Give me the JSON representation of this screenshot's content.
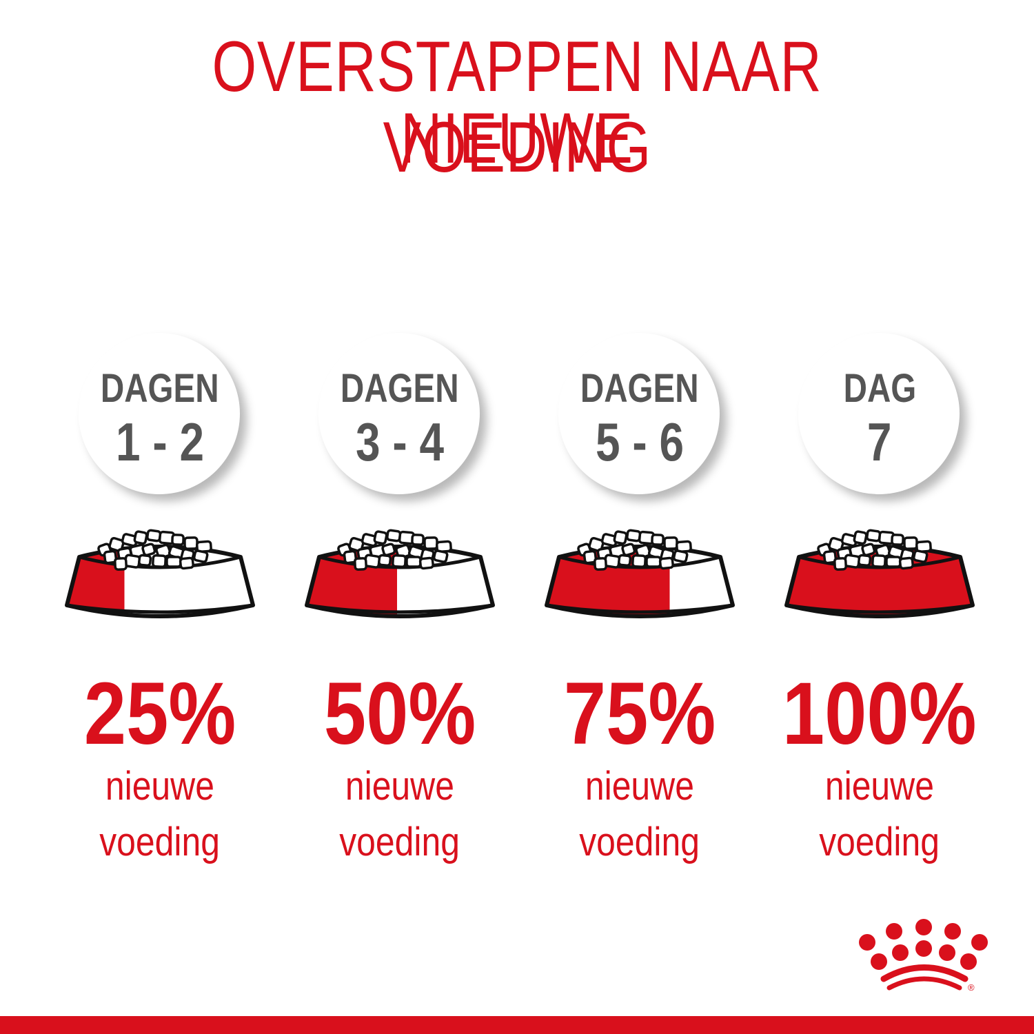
{
  "title": {
    "line1": "OVERSTAPPEN NAAR NIEUWE",
    "line2": "VOEDING"
  },
  "colors": {
    "brand_red": "#d9101c",
    "day_gray": "#555555"
  },
  "steps": [
    {
      "day_label": "DAGEN",
      "day_range": "1 - 2",
      "percent": "25%",
      "new_food_fraction": 0.25,
      "caption_line1": "nieuwe",
      "caption_line2": "voeding"
    },
    {
      "day_label": "DAGEN",
      "day_range": "3 - 4",
      "percent": "50%",
      "new_food_fraction": 0.5,
      "caption_line1": "nieuwe",
      "caption_line2": "voeding"
    },
    {
      "day_label": "DAGEN",
      "day_range": "5 - 6",
      "percent": "75%",
      "new_food_fraction": 0.75,
      "caption_line1": "nieuwe",
      "caption_line2": "voeding"
    },
    {
      "day_label": "DAG",
      "day_range": "7",
      "percent": "100%",
      "new_food_fraction": 1.0,
      "caption_line1": "nieuwe",
      "caption_line2": "voeding"
    }
  ],
  "logo": {
    "icon": "crown-dots-logo",
    "registered_mark": "®"
  }
}
